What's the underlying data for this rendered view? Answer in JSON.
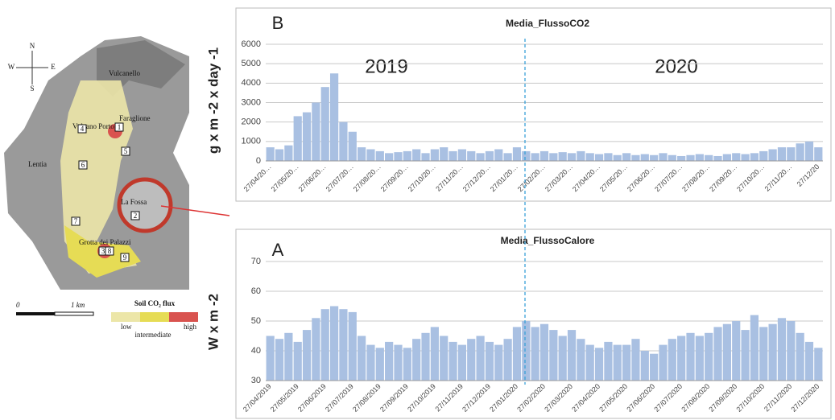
{
  "chart_data": [
    {
      "type": "bar",
      "title": "Media_FlussoCO2",
      "panel_label": "B",
      "y_label": "g x m -2 x day -1",
      "annotations": [
        "2019",
        "2020"
      ],
      "color": "#a9c0e2",
      "grid": true,
      "ylim": [
        0,
        6000
      ],
      "yticks": [
        0,
        1000,
        2000,
        3000,
        4000,
        5000,
        6000
      ],
      "categories": [
        "27/04/20…",
        null,
        null,
        "27/05/20…",
        null,
        null,
        "27/06/20…",
        null,
        null,
        "27/07/20…",
        null,
        null,
        "27/08/20…",
        null,
        null,
        "27/09/20…",
        null,
        null,
        "27/10/20…",
        null,
        null,
        "27/11/20…",
        null,
        null,
        "27/12/20…",
        null,
        null,
        "27/01/20…",
        null,
        null,
        "27/02/20…",
        null,
        null,
        "27/03/20…",
        null,
        null,
        "27/04/20…",
        null,
        null,
        "27/05/20…",
        null,
        null,
        "27/06/20…",
        null,
        null,
        "27/07/20…",
        null,
        null,
        "27/08/20…",
        null,
        null,
        "27/09/20…",
        null,
        null,
        "27/10/20…",
        null,
        null,
        "27/11/20…",
        null,
        null,
        "27/12/20"
      ],
      "values": [
        700,
        600,
        800,
        2300,
        2500,
        3000,
        3800,
        4500,
        2000,
        1500,
        700,
        600,
        500,
        400,
        450,
        500,
        600,
        400,
        600,
        700,
        500,
        600,
        500,
        400,
        500,
        600,
        400,
        700,
        500,
        400,
        500,
        400,
        450,
        400,
        500,
        400,
        350,
        400,
        300,
        400,
        300,
        350,
        300,
        400,
        300,
        250,
        300,
        350,
        300,
        250,
        350,
        400,
        350,
        400,
        500,
        600,
        700,
        700,
        900,
        1000,
        700
      ]
    },
    {
      "type": "bar",
      "title": "Media_FlussoCalore",
      "panel_label": "A",
      "y_label": "W x m -2",
      "color": "#a9c0e2",
      "grid": true,
      "ylim": [
        30,
        70
      ],
      "yticks": [
        30,
        40,
        50,
        60,
        70
      ],
      "categories": [
        "27/04/2019",
        null,
        null,
        "27/05/2019",
        null,
        null,
        "27/06/2019",
        null,
        null,
        "27/07/2019",
        null,
        null,
        "27/08/2019",
        null,
        null,
        "27/09/2019",
        null,
        null,
        "27/10/2019",
        null,
        null,
        "27/11/2019",
        null,
        null,
        "27/12/2019",
        null,
        null,
        "27/01/2020",
        null,
        null,
        "27/02/2020",
        null,
        null,
        "27/03/2020",
        null,
        null,
        "27/04/2020",
        null,
        null,
        "27/05/2020",
        null,
        null,
        "27/06/2020",
        null,
        null,
        "27/07/2020",
        null,
        null,
        "27/08/2020",
        null,
        null,
        "27/09/2020",
        null,
        null,
        "27/10/2020",
        null,
        null,
        "27/11/2020",
        null,
        null,
        "27/12/2020"
      ],
      "values": [
        45,
        44,
        46,
        43,
        47,
        51,
        54,
        55,
        54,
        53,
        45,
        42,
        41,
        43,
        42,
        41,
        44,
        46,
        48,
        45,
        43,
        42,
        44,
        45,
        43,
        42,
        44,
        48,
        50,
        48,
        49,
        47,
        45,
        47,
        44,
        42,
        41,
        43,
        42,
        42,
        44,
        40,
        39,
        42,
        44,
        45,
        46,
        45,
        46,
        48,
        49,
        50,
        47,
        52,
        48,
        49,
        51,
        50,
        46,
        43,
        41
      ]
    }
  ],
  "map": {
    "compass": [
      "N",
      "S",
      "E",
      "W"
    ],
    "places": [
      "Vulcanello",
      "Faraglione",
      "Vulcano Porto",
      "Lentia",
      "La Fossa",
      "Grotta dei Palazzi"
    ],
    "markers": [
      "1",
      "2",
      "3",
      "4",
      "5",
      "6",
      "7",
      "8",
      "9"
    ],
    "scale": [
      "0",
      "1 km"
    ],
    "legend": {
      "title": "Soil CO₂ flux",
      "labels": [
        "low",
        "intermediate",
        "high"
      ]
    }
  }
}
